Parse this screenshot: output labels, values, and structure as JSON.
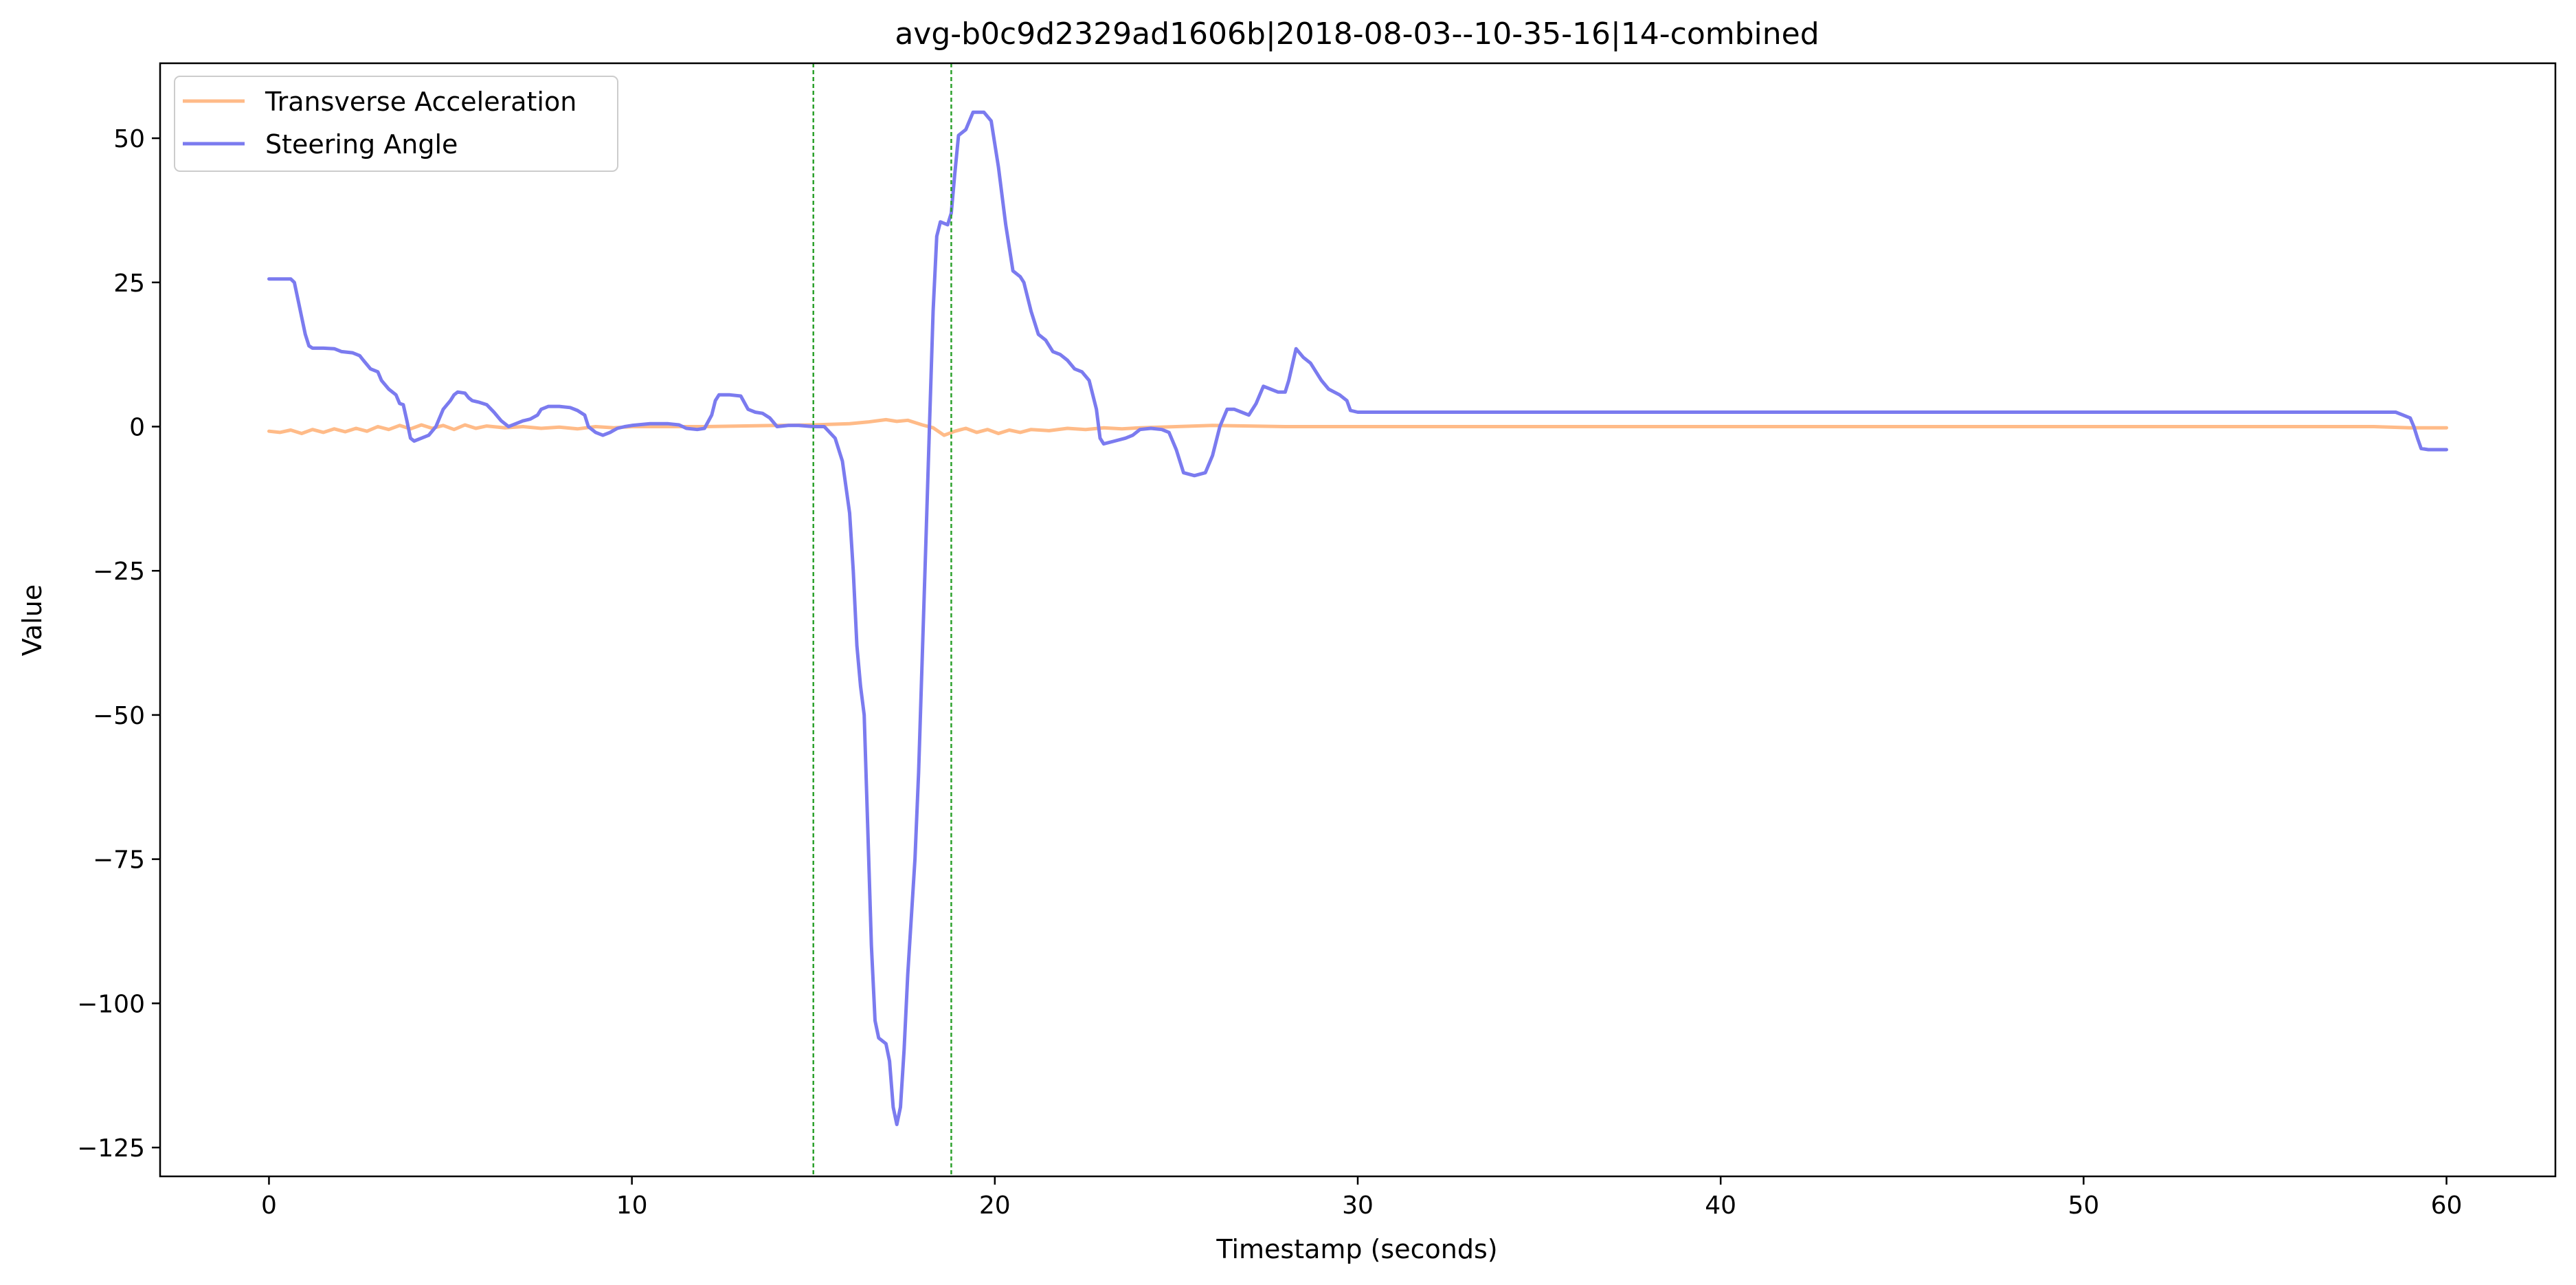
{
  "chart_data": {
    "type": "line",
    "title": "avg-b0c9d2329ad1606b|2018-08-03--10-35-16|14-combined",
    "xlabel": "Timestamp (seconds)",
    "ylabel": "Value",
    "xlim": [
      -3,
      63
    ],
    "ylim": [
      -130,
      63
    ],
    "xticks": [
      0,
      10,
      20,
      30,
      40,
      50,
      60
    ],
    "yticks": [
      50,
      25,
      0,
      -25,
      -50,
      -75,
      -100,
      -125
    ],
    "xtick_labels": [
      "0",
      "10",
      "20",
      "30",
      "40",
      "50",
      "60"
    ],
    "ytick_labels": [
      "50",
      "25",
      "0",
      "−25",
      "−50",
      "−75",
      "−100",
      "−125"
    ],
    "grid": false,
    "legend_position": "top-left",
    "vlines": [
      {
        "x": 15.0,
        "color": "#2ca02c",
        "style": "dashed"
      },
      {
        "x": 18.8,
        "color": "#2ca02c",
        "style": "dashed"
      }
    ],
    "series": [
      {
        "name": "Transverse Acceleration",
        "color": "#ffbb88",
        "points": [
          [
            0,
            -0.8
          ],
          [
            0.3,
            -1
          ],
          [
            0.6,
            -0.6
          ],
          [
            0.9,
            -1.2
          ],
          [
            1.2,
            -0.5
          ],
          [
            1.5,
            -1
          ],
          [
            1.8,
            -0.4
          ],
          [
            2.1,
            -0.9
          ],
          [
            2.4,
            -0.3
          ],
          [
            2.7,
            -0.8
          ],
          [
            3,
            0
          ],
          [
            3.3,
            -0.5
          ],
          [
            3.6,
            0.2
          ],
          [
            3.9,
            -0.4
          ],
          [
            4.2,
            0.3
          ],
          [
            4.5,
            -0.3
          ],
          [
            4.8,
            0.2
          ],
          [
            5.1,
            -0.5
          ],
          [
            5.4,
            0.3
          ],
          [
            5.7,
            -0.3
          ],
          [
            6,
            0.1
          ],
          [
            6.5,
            -0.2
          ],
          [
            7,
            0
          ],
          [
            7.5,
            -0.3
          ],
          [
            8,
            -0.1
          ],
          [
            8.5,
            -0.4
          ],
          [
            9,
            0
          ],
          [
            9.5,
            -0.2
          ],
          [
            10,
            0
          ],
          [
            11,
            0
          ],
          [
            12,
            0
          ],
          [
            13,
            0.1
          ],
          [
            14,
            0.2
          ],
          [
            15,
            0.3
          ],
          [
            15.5,
            0.4
          ],
          [
            16,
            0.5
          ],
          [
            16.5,
            0.8
          ],
          [
            17,
            1.2
          ],
          [
            17.3,
            0.9
          ],
          [
            17.6,
            1.1
          ],
          [
            18,
            0.3
          ],
          [
            18.3,
            -0.2
          ],
          [
            18.6,
            -1.5
          ],
          [
            18.9,
            -0.8
          ],
          [
            19.2,
            -0.3
          ],
          [
            19.5,
            -1
          ],
          [
            19.8,
            -0.5
          ],
          [
            20.1,
            -1.2
          ],
          [
            20.4,
            -0.6
          ],
          [
            20.7,
            -1
          ],
          [
            21,
            -0.5
          ],
          [
            21.5,
            -0.7
          ],
          [
            22,
            -0.3
          ],
          [
            22.5,
            -0.5
          ],
          [
            23,
            -0.2
          ],
          [
            23.5,
            -0.4
          ],
          [
            24,
            -0.2
          ],
          [
            25,
            0
          ],
          [
            26,
            0.2
          ],
          [
            27,
            0.1
          ],
          [
            28,
            0
          ],
          [
            29,
            0
          ],
          [
            30,
            0
          ],
          [
            35,
            0
          ],
          [
            40,
            0
          ],
          [
            45,
            0
          ],
          [
            50,
            0
          ],
          [
            55,
            0
          ],
          [
            58,
            0
          ],
          [
            59,
            -0.2
          ],
          [
            60,
            -0.2
          ]
        ]
      },
      {
        "name": "Steering Angle",
        "color": "#7b7bef",
        "points": [
          [
            0,
            25.6
          ],
          [
            0.3,
            25.6
          ],
          [
            0.6,
            25.6
          ],
          [
            0.7,
            25
          ],
          [
            0.8,
            22
          ],
          [
            0.9,
            19
          ],
          [
            1.0,
            16
          ],
          [
            1.1,
            14
          ],
          [
            1.2,
            13.6
          ],
          [
            1.5,
            13.6
          ],
          [
            1.8,
            13.5
          ],
          [
            2.0,
            13
          ],
          [
            2.3,
            12.8
          ],
          [
            2.5,
            12.3
          ],
          [
            2.6,
            11.5
          ],
          [
            2.8,
            10
          ],
          [
            3.0,
            9.5
          ],
          [
            3.1,
            8
          ],
          [
            3.3,
            6.5
          ],
          [
            3.5,
            5.5
          ],
          [
            3.6,
            4
          ],
          [
            3.7,
            3.8
          ],
          [
            3.8,
            1
          ],
          [
            3.9,
            -2
          ],
          [
            4.0,
            -2.5
          ],
          [
            4.2,
            -2
          ],
          [
            4.4,
            -1.5
          ],
          [
            4.6,
            0
          ],
          [
            4.8,
            3
          ],
          [
            5.0,
            4.5
          ],
          [
            5.1,
            5.5
          ],
          [
            5.2,
            6
          ],
          [
            5.4,
            5.8
          ],
          [
            5.5,
            5
          ],
          [
            5.6,
            4.5
          ],
          [
            5.8,
            4.2
          ],
          [
            6.0,
            3.8
          ],
          [
            6.2,
            2.5
          ],
          [
            6.4,
            1
          ],
          [
            6.6,
            0
          ],
          [
            6.8,
            0.5
          ],
          [
            7.0,
            1
          ],
          [
            7.2,
            1.3
          ],
          [
            7.4,
            2
          ],
          [
            7.5,
            3
          ],
          [
            7.7,
            3.5
          ],
          [
            8.0,
            3.5
          ],
          [
            8.3,
            3.3
          ],
          [
            8.5,
            2.8
          ],
          [
            8.7,
            2
          ],
          [
            8.8,
            0
          ],
          [
            9.0,
            -1
          ],
          [
            9.2,
            -1.5
          ],
          [
            9.4,
            -1
          ],
          [
            9.6,
            -0.3
          ],
          [
            9.8,
            0
          ],
          [
            10.0,
            0.2
          ],
          [
            10.5,
            0.5
          ],
          [
            11.0,
            0.5
          ],
          [
            11.3,
            0.3
          ],
          [
            11.5,
            -0.3
          ],
          [
            11.8,
            -0.5
          ],
          [
            12.0,
            -0.3
          ],
          [
            12.2,
            2
          ],
          [
            12.3,
            4.5
          ],
          [
            12.4,
            5.5
          ],
          [
            12.7,
            5.5
          ],
          [
            13.0,
            5.3
          ],
          [
            13.2,
            3
          ],
          [
            13.4,
            2.5
          ],
          [
            13.6,
            2.3
          ],
          [
            13.8,
            1.5
          ],
          [
            14.0,
            0
          ],
          [
            14.3,
            0.2
          ],
          [
            14.6,
            0.2
          ],
          [
            15.0,
            0
          ],
          [
            15.3,
            0
          ],
          [
            15.6,
            -2
          ],
          [
            15.8,
            -6
          ],
          [
            16.0,
            -15
          ],
          [
            16.1,
            -25
          ],
          [
            16.2,
            -38
          ],
          [
            16.3,
            -45
          ],
          [
            16.4,
            -50
          ],
          [
            16.5,
            -70
          ],
          [
            16.6,
            -90
          ],
          [
            16.7,
            -103
          ],
          [
            16.8,
            -106
          ],
          [
            17.0,
            -107
          ],
          [
            17.1,
            -110
          ],
          [
            17.2,
            -118
          ],
          [
            17.3,
            -121
          ],
          [
            17.4,
            -118
          ],
          [
            17.5,
            -108
          ],
          [
            17.6,
            -95
          ],
          [
            17.8,
            -75
          ],
          [
            17.9,
            -60
          ],
          [
            18.0,
            -40
          ],
          [
            18.1,
            -20
          ],
          [
            18.2,
            0
          ],
          [
            18.3,
            20
          ],
          [
            18.4,
            33
          ],
          [
            18.5,
            35.5
          ],
          [
            18.7,
            35
          ],
          [
            18.8,
            37
          ],
          [
            18.9,
            44
          ],
          [
            19.0,
            50.5
          ],
          [
            19.2,
            51.5
          ],
          [
            19.4,
            54.5
          ],
          [
            19.7,
            54.5
          ],
          [
            19.9,
            53
          ],
          [
            20.1,
            45
          ],
          [
            20.3,
            35
          ],
          [
            20.5,
            27
          ],
          [
            20.7,
            26
          ],
          [
            20.8,
            25
          ],
          [
            21.0,
            20
          ],
          [
            21.2,
            16
          ],
          [
            21.4,
            15
          ],
          [
            21.6,
            13
          ],
          [
            21.8,
            12.5
          ],
          [
            22.0,
            11.5
          ],
          [
            22.2,
            10
          ],
          [
            22.4,
            9.5
          ],
          [
            22.6,
            8
          ],
          [
            22.8,
            3
          ],
          [
            22.9,
            -2
          ],
          [
            23.0,
            -3
          ],
          [
            23.3,
            -2.5
          ],
          [
            23.6,
            -2
          ],
          [
            23.8,
            -1.5
          ],
          [
            24.0,
            -0.5
          ],
          [
            24.3,
            -0.3
          ],
          [
            24.6,
            -0.5
          ],
          [
            24.8,
            -1
          ],
          [
            25.0,
            -4
          ],
          [
            25.2,
            -8
          ],
          [
            25.5,
            -8.5
          ],
          [
            25.8,
            -8
          ],
          [
            26.0,
            -5
          ],
          [
            26.2,
            0
          ],
          [
            26.4,
            3
          ],
          [
            26.6,
            3
          ],
          [
            26.8,
            2.5
          ],
          [
            27.0,
            2
          ],
          [
            27.2,
            4
          ],
          [
            27.4,
            7
          ],
          [
            27.6,
            6.5
          ],
          [
            27.8,
            6
          ],
          [
            28.0,
            6
          ],
          [
            28.1,
            8
          ],
          [
            28.3,
            13.5
          ],
          [
            28.5,
            12
          ],
          [
            28.7,
            11
          ],
          [
            29.0,
            8
          ],
          [
            29.2,
            6.5
          ],
          [
            29.5,
            5.5
          ],
          [
            29.7,
            4.5
          ],
          [
            29.8,
            2.8
          ],
          [
            30.0,
            2.5
          ],
          [
            35,
            2.5
          ],
          [
            40,
            2.5
          ],
          [
            45,
            2.5
          ],
          [
            50,
            2.5
          ],
          [
            55,
            2.5
          ],
          [
            58.6,
            2.5
          ],
          [
            58.8,
            2
          ],
          [
            59.0,
            1.5
          ],
          [
            59.1,
            0
          ],
          [
            59.2,
            -2
          ],
          [
            59.3,
            -3.8
          ],
          [
            59.5,
            -4
          ],
          [
            60,
            -4
          ]
        ]
      }
    ]
  }
}
